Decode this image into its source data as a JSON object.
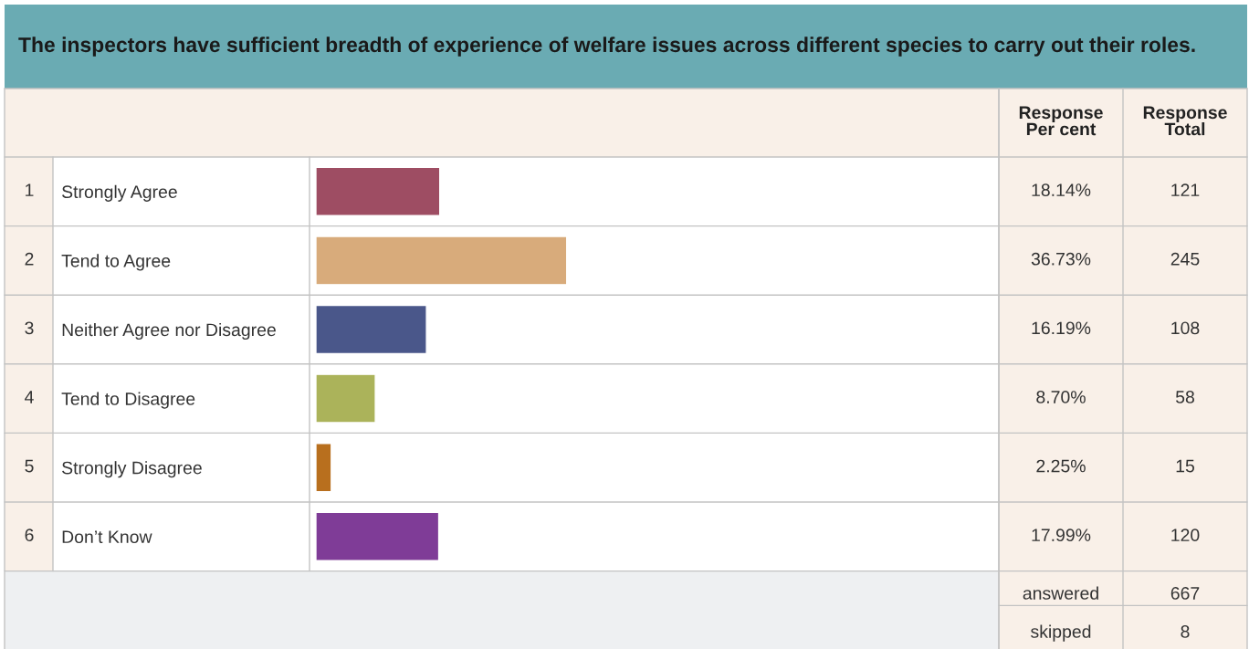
{
  "chart_data": {
    "type": "bar",
    "orientation": "horizontal",
    "title": "The inspectors have sufficient breadth of experience of welfare issues across different species to carry out their roles.",
    "categories": [
      "Strongly Agree",
      "Tend to Agree",
      "Neither Agree nor Disagree",
      "Tend to Disagree",
      "Strongly Disagree",
      "Don’t Know"
    ],
    "values": [
      18.14,
      36.73,
      16.19,
      8.7,
      2.25,
      17.99
    ],
    "colors": [
      "#9e4d63",
      "#d8ab7b",
      "#4a578a",
      "#abb35a",
      "#b86f1e",
      "#7f3c97"
    ],
    "value_labels": [
      "18.14%",
      "36.73%",
      "16.19%",
      "8.70%",
      "2.25%",
      "17.99%"
    ],
    "xlim": [
      0,
      100
    ],
    "tick_labels": "y",
    "annotations": [
      "Response Per cent",
      "Response Total",
      "1",
      "2",
      "3",
      "4",
      "5",
      "6",
      "121",
      "245",
      "108",
      "58",
      "15",
      "120",
      "answered",
      "667",
      "skipped",
      "8"
    ]
  }
}
